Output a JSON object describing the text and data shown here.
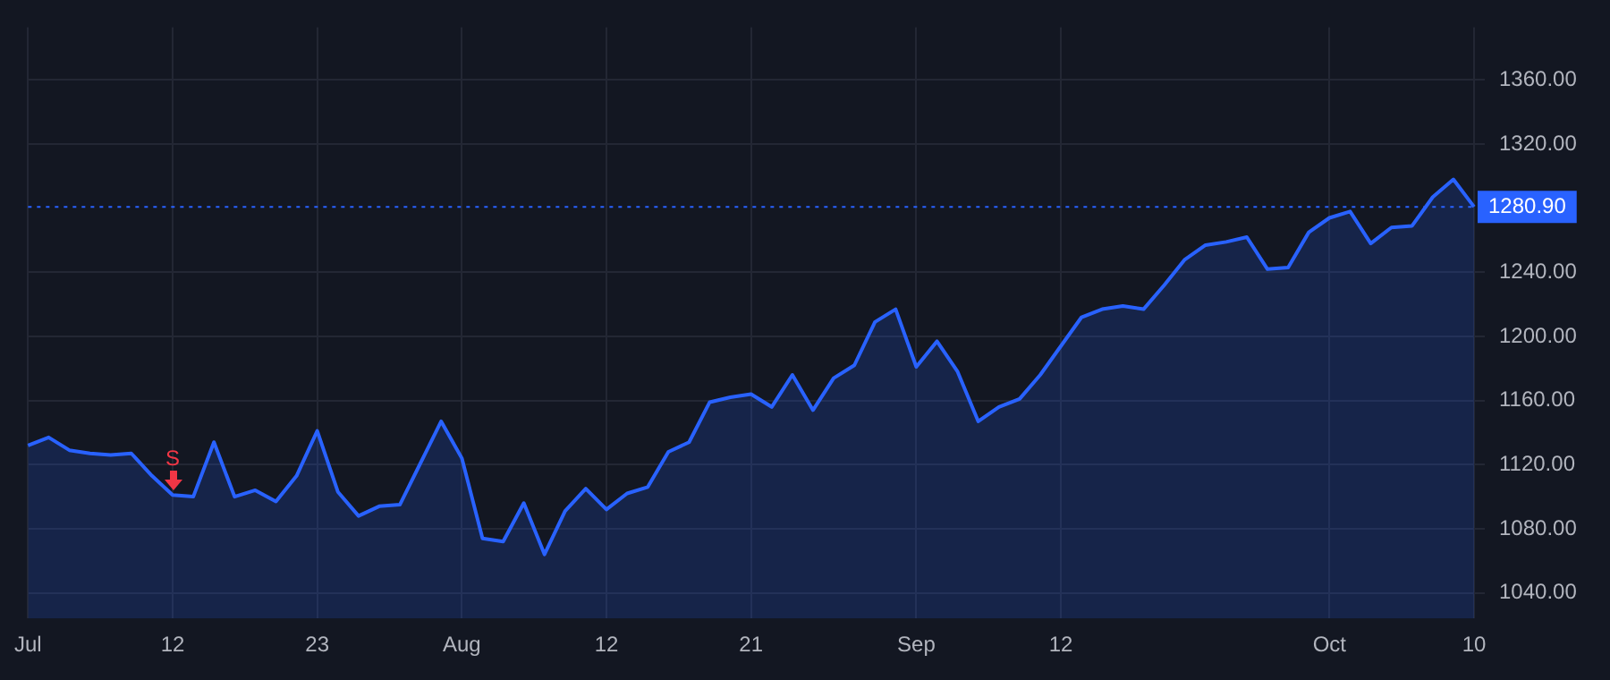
{
  "chart_data": {
    "type": "area",
    "categories": [
      "Jul",
      null,
      null,
      null,
      null,
      null,
      null,
      "12",
      null,
      null,
      null,
      null,
      null,
      null,
      "23",
      null,
      null,
      null,
      null,
      null,
      null,
      "Aug",
      null,
      null,
      null,
      null,
      null,
      null,
      "12",
      null,
      null,
      null,
      null,
      null,
      null,
      "21",
      null,
      null,
      null,
      null,
      null,
      null,
      null,
      "Sep",
      null,
      null,
      null,
      null,
      null,
      null,
      "12",
      null,
      null,
      null,
      null,
      null,
      null,
      null,
      null,
      null,
      null,
      null,
      null,
      "Oct",
      null,
      null,
      null,
      null,
      null,
      null,
      "10"
    ],
    "series": [
      {
        "color": "#2962ff",
        "values": [
          1132,
          1137,
          1129,
          1127,
          1126,
          1127,
          1113,
          1101,
          1100,
          1134,
          1100,
          1104,
          1097,
          1113,
          1141,
          1103,
          1088,
          1094,
          1095,
          1121,
          1147,
          1124,
          1074,
          1072,
          1096,
          1064,
          1091,
          1105,
          1092,
          1102,
          1106,
          1128,
          1134,
          1159,
          1162,
          1164,
          1156,
          1176,
          1154,
          1174,
          1182,
          1209,
          1217,
          1181,
          1197,
          1178,
          1147,
          1156,
          1161,
          1176,
          1194,
          1212,
          1217,
          1219,
          1217,
          1232,
          1248,
          1257,
          1259,
          1262,
          1242,
          1243,
          1265,
          1274,
          1278,
          1258,
          1268,
          1269,
          1287,
          1298,
          1280.9
        ]
      }
    ],
    "ylim": [
      1024,
      1393
    ],
    "yticks": [
      {
        "value": 1040,
        "label": "1040.00"
      },
      {
        "value": 1080,
        "label": "1080.00"
      },
      {
        "value": 1120,
        "label": "1120.00"
      },
      {
        "value": 1160,
        "label": "1160.00"
      },
      {
        "value": 1200,
        "label": "1200.00"
      },
      {
        "value": 1240,
        "label": "1240.00"
      },
      {
        "value": 1280,
        "label": null
      },
      {
        "value": 1320,
        "label": "1320.00"
      },
      {
        "value": 1360,
        "label": "1360.00"
      }
    ],
    "ref_lines": [
      {
        "axis": "y",
        "value": 1280.9,
        "label": "1280.90",
        "color": "#2962ff",
        "line_style": "dotted"
      }
    ],
    "annotations": [
      {
        "text": "S",
        "x": "12",
        "y": 1101
      }
    ],
    "grid": true,
    "legend": false,
    "marker": "none",
    "line_style": "solid"
  }
}
